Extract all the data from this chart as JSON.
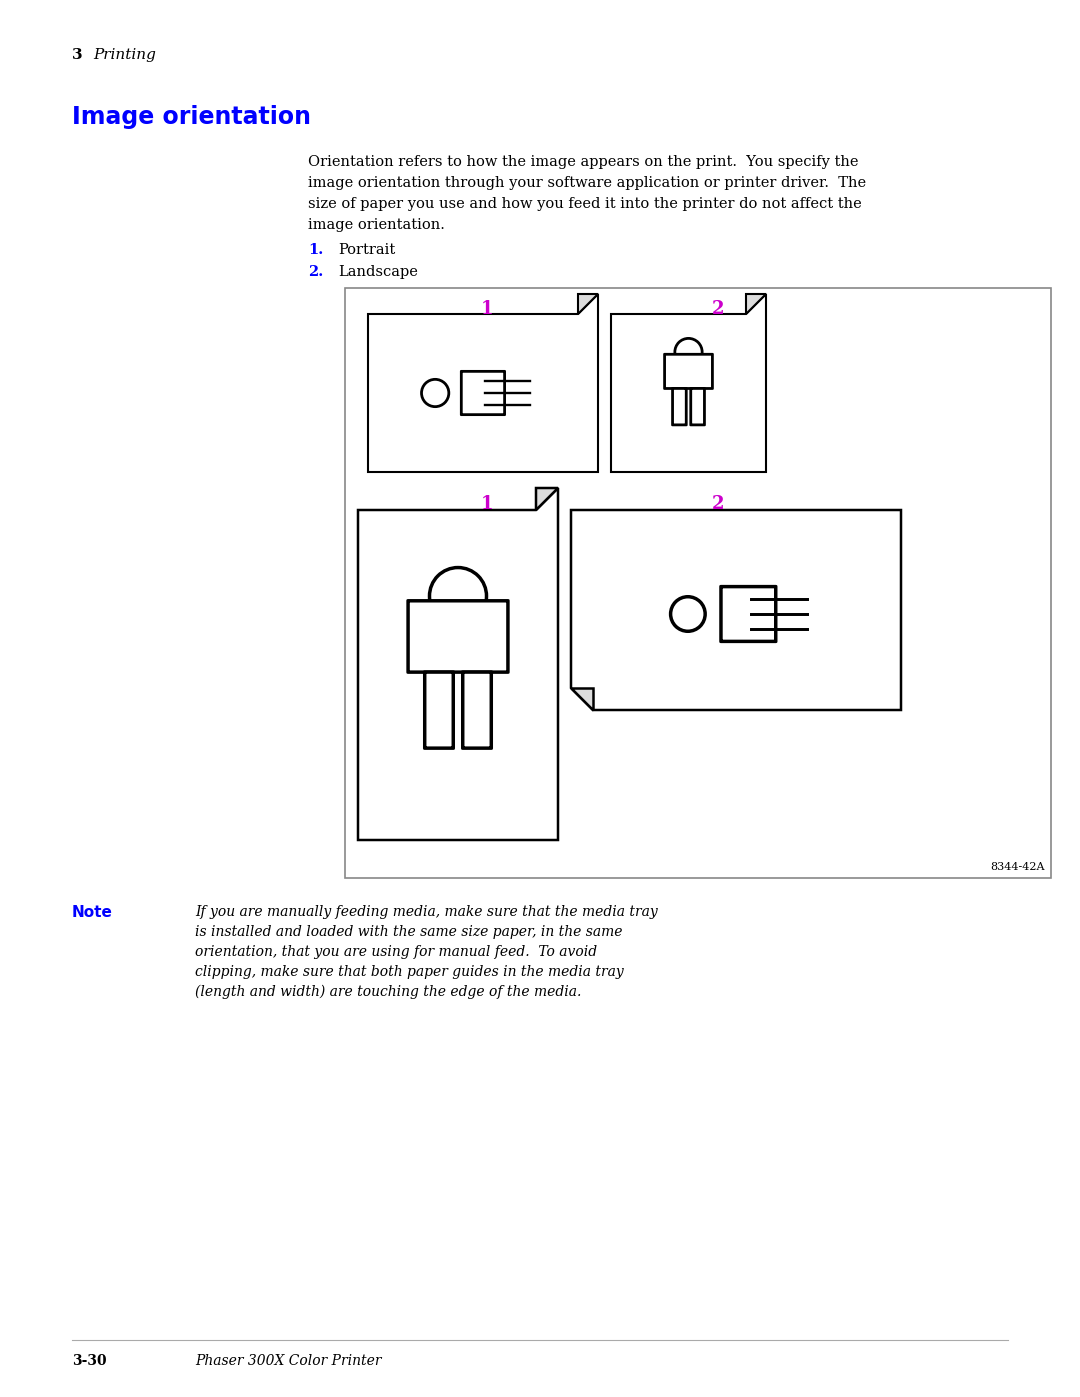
{
  "bg_color": "#ffffff",
  "page_header_num": "3",
  "page_header_text": "Printing",
  "section_title": "Image orientation",
  "section_title_color": "#0000ff",
  "body_text_lines": [
    "Orientation refers to how the image appears on the print.  You specify the",
    "image orientation through your software application or printer driver.  The",
    "size of paper you use and how you feed it into the printer do not affect the",
    "image orientation."
  ],
  "list_item1_num": "1.",
  "list_item1_text": "Portrait",
  "list_item2_num": "2.",
  "list_item2_text": "Landscape",
  "list_color": "#0000ff",
  "diagram_label_color": "#cc00cc",
  "note_label": "Note",
  "note_label_color": "#0000ff",
  "note_text_lines": [
    "If you are manually feeding media, make sure that the media tray",
    "is installed and loaded with the same size paper, in the same",
    "orientation, that you are using for manual feed.  To avoid",
    "clipping, make sure that both paper guides in the media tray",
    "(length and width) are touching the edge of the media."
  ],
  "diagram_code": "8344-42A",
  "footer_left": "3-30",
  "footer_right": "Phaser 300X Color Printer",
  "line_color": "#000000",
  "text_color": "#000000",
  "fold_color": "#dddddd",
  "outer_box_color": "#888888"
}
